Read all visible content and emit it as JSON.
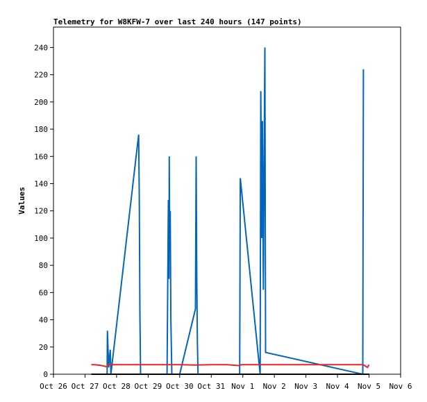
{
  "chart_data": {
    "type": "line",
    "title": "Telemetry for W8KFW-7 over last 240 hours (147 points)",
    "xlabel": "",
    "ylabel": "Values",
    "ylim": [
      0,
      255
    ],
    "xlim": [
      "Oct 26",
      "Nov 6"
    ],
    "x_tick_labels": [
      "Oct 26",
      "Oct 27",
      "Oct 28",
      "Oct 29",
      "Oct 30",
      "Oct 31",
      "Nov 1",
      "Nov 2",
      "Nov 3",
      "Nov 4",
      "Nov 5",
      "Nov 6"
    ],
    "y_ticks": [
      0,
      20,
      40,
      60,
      80,
      100,
      120,
      140,
      160,
      180,
      200,
      220,
      240
    ],
    "grid": false,
    "legend": "none",
    "series": [
      {
        "color": "#0066bb",
        "x": [
          27.2,
          27.7,
          27.71,
          27.75,
          27.8,
          27.82,
          28.7,
          28.72,
          28.74,
          28.76,
          29.6,
          29.62,
          29.64,
          29.66,
          29.67,
          29.68,
          29.7,
          29.72,
          29.75,
          30.0,
          30.5,
          30.52,
          30.54,
          30.56,
          30.58,
          31.9,
          31.92,
          32.55,
          32.57,
          32.6,
          32.62,
          32.65,
          32.67,
          32.7,
          32.72,
          35.8,
          35.82
        ],
        "y": [
          0,
          0,
          32,
          5,
          18,
          0,
          176,
          130,
          45,
          0,
          0,
          60,
          128,
          70,
          160,
          100,
          120,
          40,
          0,
          0,
          48,
          160,
          72,
          24,
          0,
          0,
          144,
          0,
          208,
          100,
          186,
          62,
          144,
          240,
          16,
          0,
          224
        ]
      },
      {
        "color": "#ee2222",
        "x": [
          27.2,
          27.3,
          27.5,
          27.7,
          27.72,
          28.0,
          29.0,
          29.5,
          30.0,
          30.5,
          31.0,
          31.5,
          31.9,
          31.95,
          32.5,
          33.0,
          34.0,
          35.0,
          35.8,
          35.85,
          35.95,
          36.0
        ],
        "y": [
          7,
          7,
          6.5,
          5.5,
          7,
          7,
          7,
          7,
          7,
          6.8,
          7,
          7,
          6.3,
          7,
          7,
          7,
          7,
          7,
          7,
          6.5,
          5,
          7
        ]
      },
      {
        "color": "#000000",
        "x": [
          27.2,
          36.0
        ],
        "y": [
          0,
          0
        ]
      }
    ]
  }
}
